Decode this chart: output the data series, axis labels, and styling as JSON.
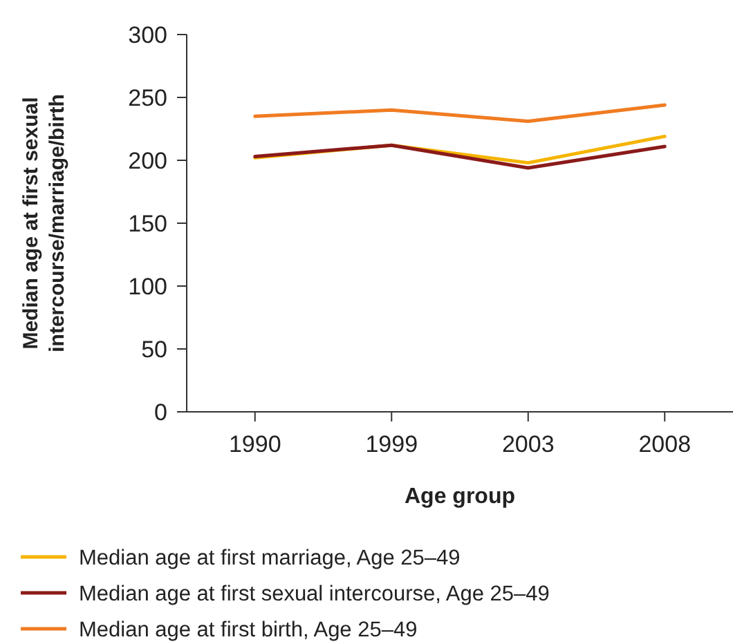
{
  "chart_data": {
    "type": "line",
    "xlabel": "Age group",
    "ylabel": "Median age at first sexual intercourse/marriage/birth",
    "categories": [
      "1990",
      "1999",
      "2003",
      "2008"
    ],
    "series": [
      {
        "name": "Median age at first marriage, Age 25–49",
        "color": "#f5b400",
        "values": [
          202,
          212,
          198,
          219
        ]
      },
      {
        "name": "Median age at first sexual intercourse, Age 25–49",
        "color": "#8b1a1a",
        "values": [
          203,
          212,
          194,
          211
        ]
      },
      {
        "name": "Median age at first birth, Age 25–49",
        "color": "#f07c22",
        "values": [
          235,
          240,
          231,
          244
        ]
      }
    ],
    "ylim": [
      0,
      300
    ],
    "yticks": [
      0,
      50,
      100,
      150,
      200,
      250,
      300
    ],
    "grid": false,
    "legend": "bottom",
    "marker": "none",
    "line_style": "solid"
  }
}
